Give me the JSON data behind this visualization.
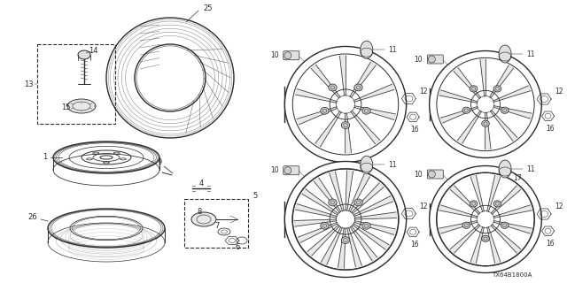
{
  "bg_color": "#ffffff",
  "line_color": "#2a2a2a",
  "figsize": [
    6.4,
    3.2
  ],
  "dpi": 100,
  "diagram_code": "TX64B1800A",
  "fig_w": 640,
  "fig_h": 320
}
